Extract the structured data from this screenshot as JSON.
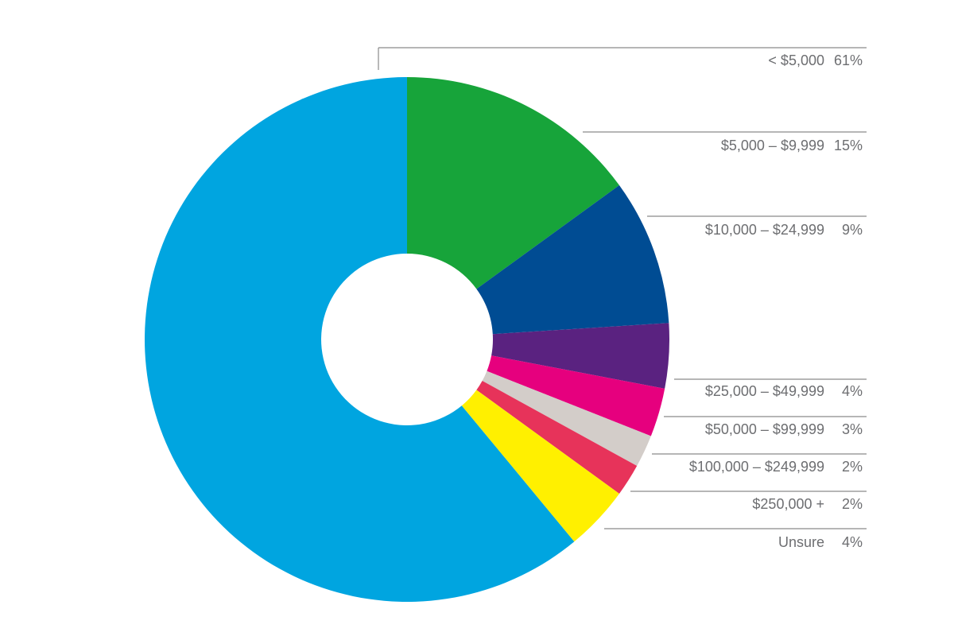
{
  "chart_data": {
    "type": "pie",
    "style": "donut",
    "title": "",
    "legend": "right",
    "slices": [
      {
        "label": "< $5,000",
        "value": 61,
        "value_label": "61%",
        "color": "#00a5e0"
      },
      {
        "label": "$5,000 – $9,999",
        "value": 15,
        "value_label": "15%",
        "color": "#17a43a"
      },
      {
        "label": "$10,000 – $24,999",
        "value": 9,
        "value_label": "9%",
        "color": "#004c93"
      },
      {
        "label": "$25,000 – $49,999",
        "value": 4,
        "value_label": "4%",
        "color": "#5a2280"
      },
      {
        "label": "$50,000 – $99,999",
        "value": 3,
        "value_label": "3%",
        "color": "#e6007e"
      },
      {
        "label": "$100,000 – $249,999",
        "value": 2,
        "value_label": "2%",
        "color": "#d3cdc9"
      },
      {
        "label": "$250,000 +",
        "value": 2,
        "value_label": "2%",
        "color": "#e7335a"
      },
      {
        "label": "Unsure",
        "value": 4,
        "value_label": "4%",
        "color": "#fff000"
      }
    ],
    "leader_line_color": "#8a8a8a",
    "text_color": "#6d6e71"
  }
}
